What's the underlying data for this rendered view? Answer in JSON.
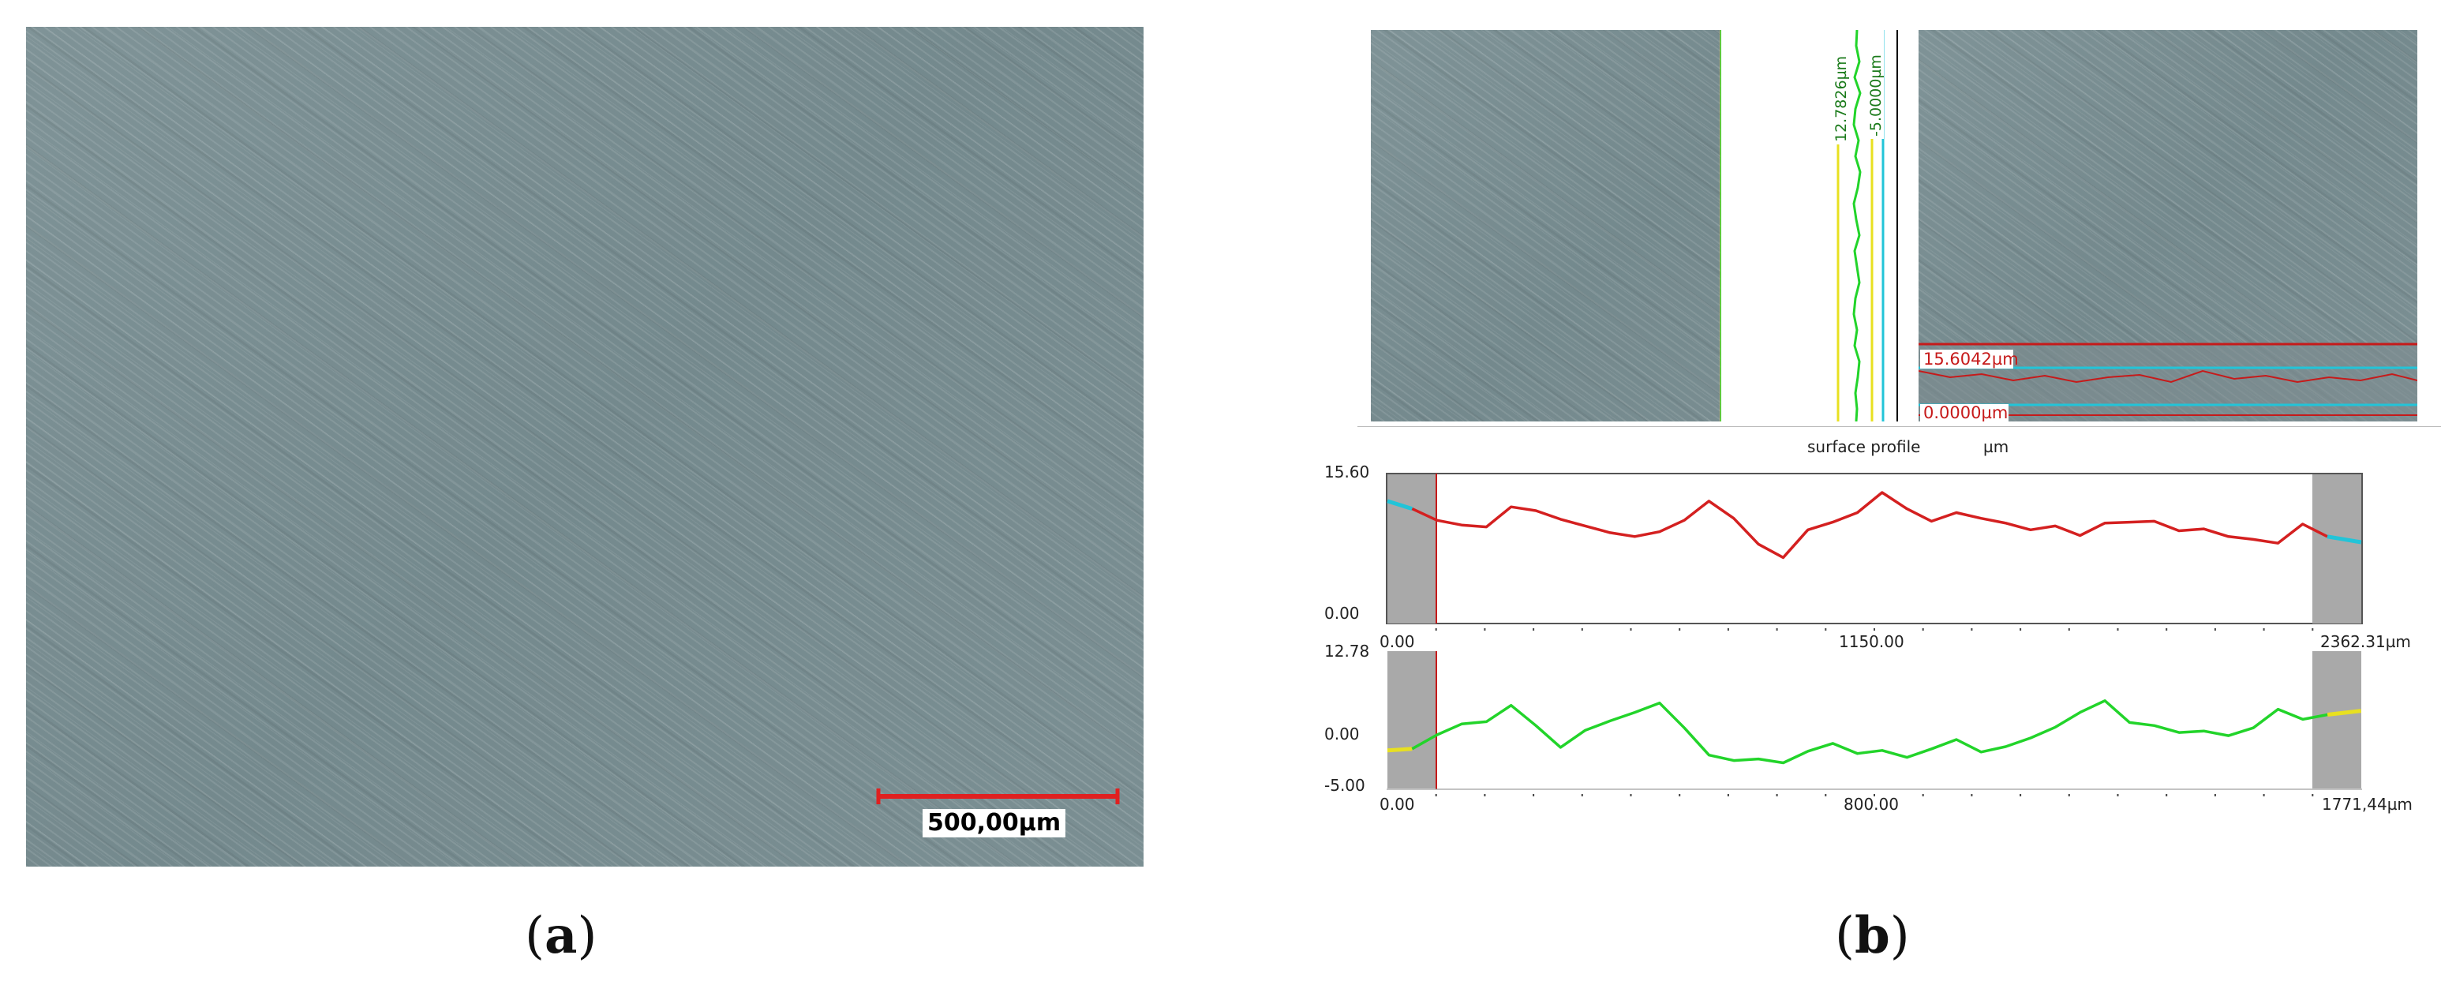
{
  "panel_a": {
    "label_open": "(",
    "label_letter": "a",
    "label_close": ")",
    "scale_bar": {
      "label": "500,00µm",
      "color": "#e02020"
    }
  },
  "panel_b": {
    "label_open": "(",
    "label_letter": "b",
    "label_close": ")",
    "vertical_profile_labels": {
      "max": "12.7826µm",
      "min": "-5.0000µm"
    },
    "horizontal_profile_labels": {
      "max": "15.6042µm",
      "min": "0.0000µm"
    },
    "profile_title": "surface profile",
    "profile_unit": "µm",
    "chart_data": [
      {
        "type": "line",
        "title": "surface profile",
        "y_axis": {
          "max_label": "15.60",
          "min_label": "0.00",
          "ylim": [
            0,
            15.6
          ]
        },
        "x_axis": {
          "tick_labels": [
            "0.00",
            "1150.00",
            "2362.31µm"
          ],
          "xlim": [
            0,
            2362.31
          ]
        },
        "series_color": "#d42020",
        "edge_color": "#22c4d8",
        "x": [
          0,
          60,
          120,
          180,
          240,
          300,
          360,
          420,
          480,
          540,
          600,
          660,
          720,
          780,
          840,
          900,
          960,
          1020,
          1080,
          1140,
          1200,
          1260,
          1320,
          1380,
          1440,
          1500,
          1560,
          1620,
          1680,
          1740,
          1800,
          1860,
          1920,
          1980,
          2040,
          2100,
          2160,
          2220,
          2280,
          2362
        ],
        "y": [
          12.8,
          12.0,
          10.8,
          10.3,
          10.1,
          12.2,
          11.8,
          10.9,
          10.2,
          9.5,
          9.1,
          9.6,
          10.8,
          12.8,
          11.0,
          8.3,
          6.9,
          9.8,
          10.6,
          11.6,
          13.7,
          12.0,
          10.7,
          11.6,
          11.0,
          10.5,
          9.8,
          10.2,
          9.2,
          10.5,
          10.6,
          10.7,
          9.7,
          9.9,
          9.1,
          8.8,
          8.4,
          10.4,
          9.1,
          8.5
        ]
      },
      {
        "type": "line",
        "y_axis": {
          "max_label": "12.78",
          "mid_label": "0.00",
          "min_label": "-5.00",
          "ylim": [
            -5,
            12.78
          ]
        },
        "x_axis": {
          "tick_labels": [
            "0.00",
            "800.00",
            "1771,44µm"
          ],
          "xlim": [
            0,
            1771.44
          ]
        },
        "series_color": "#22d42a",
        "edge_color": "#e8e020",
        "x": [
          0,
          45,
          90,
          135,
          180,
          225,
          270,
          315,
          360,
          405,
          450,
          495,
          540,
          585,
          630,
          675,
          720,
          765,
          810,
          855,
          900,
          945,
          990,
          1035,
          1080,
          1125,
          1170,
          1215,
          1260,
          1305,
          1350,
          1395,
          1440,
          1485,
          1530,
          1575,
          1620,
          1665,
          1710,
          1771
        ],
        "y": [
          0.0,
          0.2,
          2.0,
          3.4,
          3.7,
          5.8,
          3.2,
          0.4,
          2.6,
          3.8,
          4.9,
          6.1,
          2.9,
          -0.6,
          -1.3,
          -1.1,
          -1.6,
          -0.1,
          0.9,
          -0.4,
          0.0,
          -0.9,
          0.2,
          1.4,
          -0.2,
          0.5,
          1.6,
          3.0,
          4.9,
          6.4,
          3.6,
          3.2,
          2.3,
          2.5,
          1.9,
          2.9,
          5.3,
          4.0,
          4.6,
          5.1
        ]
      }
    ]
  }
}
